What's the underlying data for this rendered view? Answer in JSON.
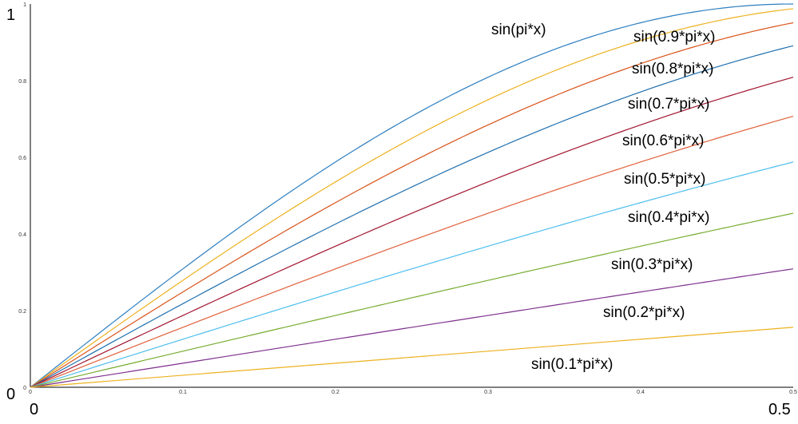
{
  "chart_data": {
    "type": "line",
    "x_range": [
      0,
      0.5
    ],
    "ylim": [
      0,
      1
    ],
    "grid": false,
    "small_x_ticks": [
      "0",
      "0.1",
      "0.2",
      "0.3",
      "0.4",
      "0.5"
    ],
    "small_y_ticks": [
      "0",
      "0.2",
      "0.4",
      "0.6",
      "0.8",
      "1"
    ],
    "big_x_labels": [
      "0",
      "0.5"
    ],
    "big_y_labels": [
      "0",
      "1"
    ],
    "series": [
      {
        "name": "sin(pi*x)",
        "coef": 1.0,
        "color": "#2e7fc0",
        "x": [
          0,
          0.1,
          0.2,
          0.3,
          0.4,
          0.5
        ],
        "y": [
          0,
          0.309,
          0.588,
          0.809,
          0.951,
          1.0
        ]
      },
      {
        "name": "sin(0.9*pi*x)",
        "coef": 0.9,
        "color": "#edb120",
        "x": [
          0,
          0.1,
          0.2,
          0.3,
          0.4,
          0.5
        ],
        "y": [
          0,
          0.279,
          0.536,
          0.75,
          0.905,
          0.988
        ]
      },
      {
        "name": "sin(0.8*pi*x)",
        "coef": 0.8,
        "color": "#d95319",
        "x": [
          0,
          0.1,
          0.2,
          0.3,
          0.4,
          0.5
        ],
        "y": [
          0,
          0.249,
          0.482,
          0.685,
          0.844,
          0.951
        ]
      },
      {
        "name": "sin(0.7*pi*x)",
        "coef": 0.7,
        "color": "#1f6fae",
        "x": [
          0,
          0.1,
          0.2,
          0.3,
          0.4,
          0.5
        ],
        "y": [
          0,
          0.218,
          0.426,
          0.613,
          0.771,
          0.891
        ]
      },
      {
        "name": "sin(0.6*pi*x)",
        "coef": 0.6,
        "color": "#a2142f",
        "x": [
          0,
          0.1,
          0.2,
          0.3,
          0.4,
          0.5
        ],
        "y": [
          0,
          0.187,
          0.368,
          0.536,
          0.685,
          0.809
        ]
      },
      {
        "name": "sin(0.5*pi*x)",
        "coef": 0.5,
        "color": "#e0603a",
        "x": [
          0,
          0.1,
          0.2,
          0.3,
          0.4,
          0.5
        ],
        "y": [
          0,
          0.156,
          0.309,
          0.454,
          0.588,
          0.707
        ]
      },
      {
        "name": "sin(0.4*pi*x)",
        "coef": 0.4,
        "color": "#4dbeee",
        "x": [
          0,
          0.1,
          0.2,
          0.3,
          0.4,
          0.5
        ],
        "y": [
          0,
          0.125,
          0.249,
          0.368,
          0.482,
          0.588
        ]
      },
      {
        "name": "sin(0.3*pi*x)",
        "coef": 0.3,
        "color": "#77ac30",
        "x": [
          0,
          0.1,
          0.2,
          0.3,
          0.4,
          0.5
        ],
        "y": [
          0,
          0.094,
          0.187,
          0.279,
          0.368,
          0.454
        ]
      },
      {
        "name": "sin(0.2*pi*x)",
        "coef": 0.2,
        "color": "#7e2f8e",
        "x": [
          0,
          0.1,
          0.2,
          0.3,
          0.4,
          0.5
        ],
        "y": [
          0,
          0.063,
          0.125,
          0.187,
          0.249,
          0.309
        ]
      },
      {
        "name": "sin(0.1*pi*x)",
        "coef": 0.1,
        "color": "#edb120",
        "x": [
          0,
          0.1,
          0.2,
          0.3,
          0.4,
          0.5
        ],
        "y": [
          0,
          0.031,
          0.063,
          0.094,
          0.125,
          0.156
        ]
      }
    ]
  }
}
